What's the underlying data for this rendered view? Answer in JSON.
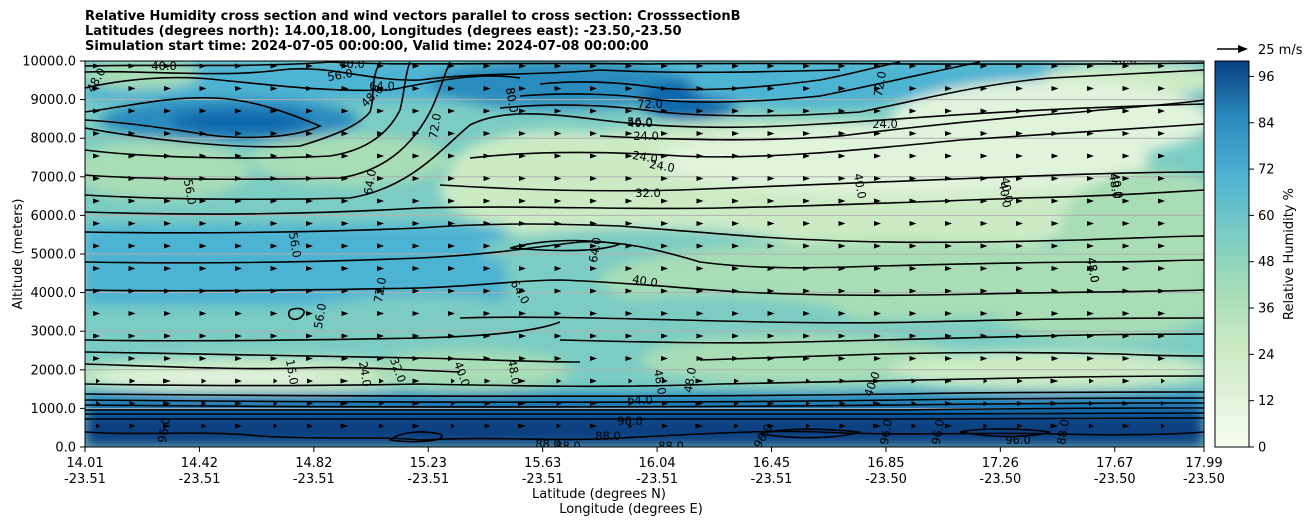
{
  "chart_data": {
    "type": "contour",
    "title": [
      "Relative Humidity cross section and wind vectors parallel to cross section: CrosssectionB",
      "Latitudes (degrees north): 14.00,18.00, Longitudes (degrees east): -23.50,-23.50",
      "Simulation start time: 2024-07-05 00:00:00, Valid time: 2024-07-08 00:00:00"
    ],
    "ylabel": "Altitude (meters)",
    "xlabel": "Latitude (degrees N)",
    "xlabel2": "Longitude (degrees E)",
    "ylim": [
      0,
      10000
    ],
    "y_ticks": [
      "0.0",
      "1000.0",
      "2000.0",
      "3000.0",
      "4000.0",
      "5000.0",
      "6000.0",
      "7000.0",
      "8000.0",
      "9000.0",
      "10000.0"
    ],
    "x_ticks": [
      {
        "lat": "14.01",
        "lon": "-23.51"
      },
      {
        "lat": "14.42",
        "lon": "-23.51"
      },
      {
        "lat": "14.82",
        "lon": "-23.51"
      },
      {
        "lat": "15.23",
        "lon": "-23.51"
      },
      {
        "lat": "15.63",
        "lon": "-23.51"
      },
      {
        "lat": "16.04",
        "lon": "-23.51"
      },
      {
        "lat": "16.45",
        "lon": "-23.51"
      },
      {
        "lat": "16.85",
        "lon": "-23.50"
      },
      {
        "lat": "17.26",
        "lon": "-23.50"
      },
      {
        "lat": "17.67",
        "lon": "-23.50"
      },
      {
        "lat": "17.99",
        "lon": "-23.50"
      }
    ],
    "grid": "horizontal",
    "colorbar": {
      "label": "Relative Humidity %",
      "ticks": [
        "0",
        "12",
        "24",
        "36",
        "48",
        "60",
        "72",
        "84",
        "96"
      ],
      "range": [
        0,
        100
      ],
      "colormap": "GnBu"
    },
    "quiver_key": {
      "label": "25 m/s"
    },
    "contour_labels": [
      "48.0",
      "40.0",
      "56.0",
      "64.0",
      "48.0",
      "72.0",
      "80.0",
      "72.0",
      "56.0",
      "40.0",
      "24.0",
      "24.0",
      "24.0",
      "32.0",
      "40.0",
      "40.0",
      "48.0",
      "56.0",
      "64.0",
      "56.0",
      "40.0",
      "48.0",
      "72.0",
      "56.0",
      "16.0",
      "24.0",
      "32.0",
      "40.0",
      "48.0",
      "48.0",
      "64.0",
      "64.0",
      "48.0",
      "40.0",
      "88.0",
      "88.0",
      "88.0",
      "88.0",
      "96.0",
      "96.0",
      "96.0",
      "96.0",
      "96.0",
      "96.0",
      "88.0",
      "64.0",
      "40.0",
      "80.0",
      "40.0",
      "24.0",
      "72.0",
      "40.0",
      "40.0",
      "48.0"
    ]
  },
  "colors": {
    "contour_line": "#000000",
    "vector": "#000000",
    "grid": "#b0b0b0"
  }
}
